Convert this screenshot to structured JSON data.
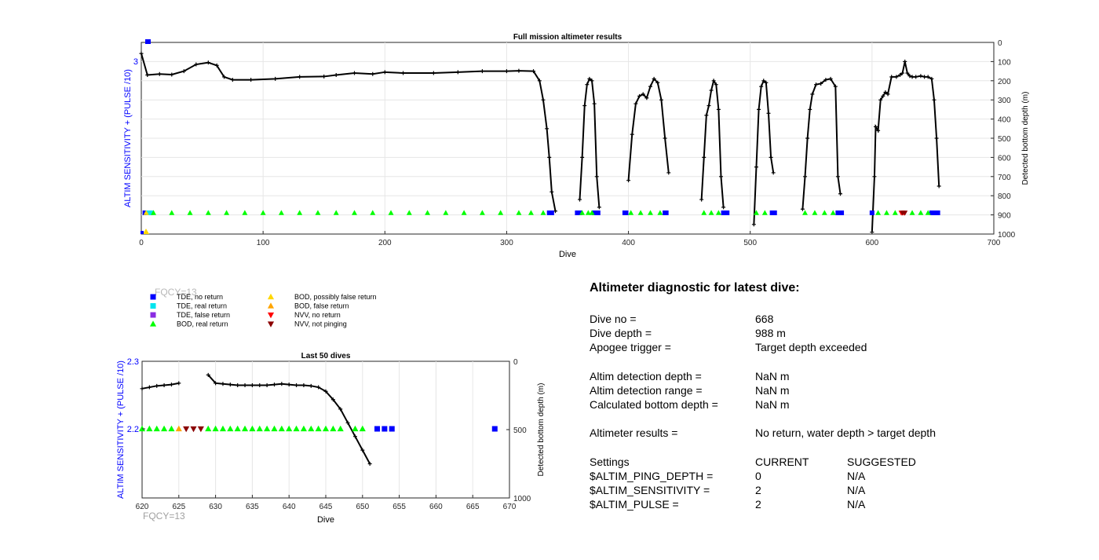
{
  "top_chart": {
    "title": "Full mission altimeter results",
    "xlabel": "Dive",
    "ylabel_left": "ALTIM SENSITIVITY + (PULSE /10)",
    "ylabel_right": "Detected bottom depth (m)",
    "xticks": [
      "0",
      "100",
      "200",
      "300",
      "400",
      "500",
      "600",
      "700"
    ],
    "yticks_right": [
      "0",
      "100",
      "200",
      "300",
      "400",
      "500",
      "600",
      "700",
      "800",
      "900",
      "1000"
    ],
    "ytick_left": "3"
  },
  "bottom_chart": {
    "title": "Last 50 dives",
    "xlabel": "Dive",
    "ylabel_left": "ALTIM SENSITIVITY + (PULSE /10)",
    "ylabel_right": "Detected bottom depth (m)",
    "xticks": [
      "620",
      "625",
      "630",
      "635",
      "640",
      "645",
      "650",
      "655",
      "660",
      "665",
      "670"
    ],
    "yticks_left": [
      "2.3",
      "2.2"
    ],
    "yticks_right": [
      "0",
      "500",
      "1000"
    ],
    "fqcy_label": "FQCY=13"
  },
  "fqcy_ghost": "FQCY=13",
  "legend": [
    {
      "label": "TDE, no return",
      "marker": "square",
      "color": "#0000ff"
    },
    {
      "label": "TDE, real return",
      "marker": "square",
      "color": "#00e5ee"
    },
    {
      "label": "TDE, false return",
      "marker": "square",
      "color": "#8a2be2"
    },
    {
      "label": "BOD, real return",
      "marker": "triangle-up",
      "color": "#00ff00"
    },
    {
      "label": "BOD, possibly false return",
      "marker": "triangle-up",
      "color": "#ffd700"
    },
    {
      "label": "BOD, false return",
      "marker": "triangle-up",
      "color": "#ffa500"
    },
    {
      "label": "NVV, no return",
      "marker": "triangle-down",
      "color": "#ff0000"
    },
    {
      "label": "NVV, not pinging",
      "marker": "triangle-down",
      "color": "#8b0000"
    }
  ],
  "diagnostic": {
    "title": "Altimeter diagnostic for latest dive:",
    "dive_no": {
      "label": "Dive no =",
      "value": "668"
    },
    "dive_depth": {
      "label": "Dive depth =",
      "value": "988 m"
    },
    "apogee": {
      "label": "Apogee trigger =",
      "value": "Target depth exceeded"
    },
    "det_depth": {
      "label": "Altim detection depth =",
      "value": "NaN m"
    },
    "det_range": {
      "label": "Altim detection range =",
      "value": "NaN m"
    },
    "calc_depth": {
      "label": "Calculated bottom depth =",
      "value": "NaN m"
    },
    "results": {
      "label": "Altimeter results =",
      "value": "No return, water depth > target depth"
    },
    "settings_header": {
      "label": "Settings",
      "current": "CURRENT",
      "suggested": "SUGGESTED"
    },
    "ping_depth": {
      "label": "$ALTIM_PING_DEPTH =",
      "current": "0",
      "suggested": "N/A"
    },
    "sensitivity": {
      "label": "$ALTIM_SENSITIVITY =",
      "current": "2",
      "suggested": "N/A"
    },
    "pulse": {
      "label": "$ALTIM_PULSE =",
      "current": "2",
      "suggested": "N/A"
    }
  },
  "chart_data": [
    {
      "type": "line",
      "title": "Full mission altimeter results",
      "xlabel": "Dive",
      "ylabel": "Detected bottom depth (m)",
      "xlim": [
        0,
        700
      ],
      "ylim": [
        1000,
        0
      ],
      "series": [
        {
          "values": [
            [
              0,
              58
            ],
            [
              5,
              170
            ],
            [
              15,
              165
            ],
            [
              25,
              168
            ],
            [
              35,
              150
            ],
            [
              45,
              115
            ],
            [
              55,
              105
            ],
            [
              62,
              120
            ],
            [
              68,
              180
            ],
            [
              75,
              195
            ],
            [
              90,
              195
            ],
            [
              110,
              190
            ],
            [
              130,
              180
            ],
            [
              150,
              178
            ],
            [
              160,
              170
            ],
            [
              175,
              160
            ],
            [
              190,
              165
            ],
            [
              200,
              155
            ],
            [
              215,
              160
            ],
            [
              240,
              160
            ],
            [
              260,
              155
            ],
            [
              280,
              150
            ],
            [
              300,
              150
            ],
            [
              310,
              148
            ],
            [
              322,
              150
            ],
            [
              327,
              200
            ],
            [
              330,
              300
            ],
            [
              333,
              450
            ],
            [
              335,
              600
            ],
            [
              337,
              780
            ],
            [
              340,
              880
            ]
          ]
        },
        {
          "values": [
            [
              360,
              820
            ],
            [
              362,
              600
            ],
            [
              364,
              330
            ],
            [
              366,
              220
            ],
            [
              368,
              190
            ],
            [
              370,
              200
            ],
            [
              372,
              320
            ],
            [
              374,
              700
            ],
            [
              376,
              860
            ]
          ]
        },
        {
          "values": [
            [
              400,
              720
            ],
            [
              403,
              480
            ],
            [
              406,
              320
            ],
            [
              409,
              280
            ],
            [
              412,
              270
            ],
            [
              415,
              290
            ],
            [
              418,
              230
            ],
            [
              421,
              190
            ],
            [
              424,
              210
            ],
            [
              427,
              300
            ],
            [
              430,
              500
            ],
            [
              433,
              680
            ]
          ]
        },
        {
          "values": [
            [
              460,
              820
            ],
            [
              462,
              600
            ],
            [
              464,
              380
            ],
            [
              466,
              330
            ],
            [
              468,
              250
            ],
            [
              470,
              200
            ],
            [
              472,
              220
            ],
            [
              474,
              350
            ],
            [
              476,
              700
            ],
            [
              478,
              860
            ]
          ]
        },
        {
          "values": [
            [
              503,
              950
            ],
            [
              505,
              650
            ],
            [
              507,
              350
            ],
            [
              509,
              230
            ],
            [
              511,
              200
            ],
            [
              513,
              210
            ],
            [
              515,
              370
            ],
            [
              517,
              600
            ],
            [
              519,
              680
            ]
          ]
        },
        {
          "values": [
            [
              543,
              870
            ],
            [
              545,
              700
            ],
            [
              547,
              500
            ],
            [
              549,
              350
            ],
            [
              551,
              270
            ],
            [
              554,
              220
            ],
            [
              558,
              215
            ],
            [
              562,
              195
            ],
            [
              566,
              190
            ],
            [
              570,
              230
            ],
            [
              572,
              700
            ],
            [
              574,
              790
            ]
          ]
        },
        {
          "values": [
            [
              600,
              990
            ],
            [
              602,
              700
            ],
            [
              603,
              440
            ],
            [
              605,
              460
            ],
            [
              607,
              300
            ],
            [
              609,
              280
            ],
            [
              611,
              260
            ],
            [
              613,
              270
            ],
            [
              616,
              180
            ],
            [
              620,
              180
            ],
            [
              623,
              170
            ],
            [
              625,
              160
            ],
            [
              627,
              100
            ],
            [
              629,
              160
            ],
            [
              631,
              175
            ],
            [
              633,
              180
            ],
            [
              636,
              180
            ],
            [
              640,
              175
            ],
            [
              643,
              180
            ],
            [
              646,
              180
            ],
            [
              649,
              190
            ],
            [
              651,
              300
            ],
            [
              653,
              500
            ],
            [
              655,
              750
            ]
          ]
        }
      ],
      "markers": [
        {
          "name": "TDE, no return",
          "marker": "square",
          "x": [
            3,
            4,
            335,
            336,
            337,
            358,
            360,
            372,
            373,
            374,
            375,
            397,
            398,
            430,
            431,
            478,
            479,
            480,
            481,
            518,
            519,
            520,
            572,
            573,
            574,
            575,
            600,
            649,
            650,
            651,
            652,
            653,
            654
          ]
        },
        {
          "name": "TDE, real return",
          "marker": "square",
          "x": [
            6,
            7,
            8
          ]
        },
        {
          "name": "BOD, real return",
          "marker": "triangle-up",
          "x": [
            10,
            25,
            40,
            55,
            70,
            85,
            100,
            115,
            130,
            145,
            160,
            175,
            190,
            205,
            220,
            235,
            250,
            265,
            280,
            295,
            310,
            320,
            330,
            362,
            367,
            370,
            402,
            410,
            418,
            426,
            462,
            468,
            474,
            505,
            512,
            545,
            553,
            561,
            568,
            605,
            612,
            619,
            633,
            640,
            646
          ]
        },
        {
          "name": "BOD, possibly false return",
          "marker": "triangle-up",
          "x": [
            4
          ]
        },
        {
          "name": "NVV, no return",
          "marker": "triangle-down",
          "x": [
            624,
            626
          ]
        },
        {
          "name": "NVV, not pinging",
          "marker": "triangle-down",
          "x": [
            625,
            627
          ]
        }
      ]
    },
    {
      "type": "line",
      "title": "Last 50 dives",
      "xlabel": "Dive",
      "ylabel": "Detected bottom depth (m)",
      "xlim": [
        620,
        670
      ],
      "ylim": [
        1000,
        0
      ],
      "series": [
        {
          "values": [
            [
              620,
              200
            ],
            [
              621,
              190
            ],
            [
              622,
              180
            ],
            [
              623,
              175
            ],
            [
              624,
              170
            ],
            [
              625,
              160
            ]
          ]
        },
        {
          "values": [
            [
              629,
              100
            ],
            [
              630,
              160
            ],
            [
              631,
              165
            ],
            [
              632,
              170
            ],
            [
              633,
              175
            ],
            [
              634,
              175
            ],
            [
              635,
              175
            ],
            [
              636,
              175
            ],
            [
              637,
              175
            ],
            [
              638,
              170
            ],
            [
              639,
              165
            ],
            [
              640,
              170
            ],
            [
              641,
              175
            ],
            [
              642,
              175
            ],
            [
              643,
              180
            ],
            [
              644,
              190
            ],
            [
              645,
              220
            ],
            [
              646,
              280
            ],
            [
              647,
              350
            ],
            [
              648,
              450
            ],
            [
              649,
              550
            ],
            [
              650,
              650
            ],
            [
              651,
              750
            ]
          ]
        }
      ],
      "markers": [
        {
          "name": "BOD, real return",
          "marker": "triangle-up",
          "x": [
            620,
            621,
            622,
            623,
            624,
            629,
            630,
            631,
            632,
            633,
            634,
            635,
            636,
            637,
            638,
            639,
            640,
            641,
            642,
            643,
            644,
            645,
            646,
            647,
            649,
            650
          ]
        },
        {
          "name": "BOD, false return",
          "marker": "triangle-up",
          "x": [
            625
          ]
        },
        {
          "name": "NVV, not pinging",
          "marker": "triangle-down",
          "x": [
            626,
            627,
            628
          ]
        },
        {
          "name": "TDE, no return",
          "marker": "square",
          "x": [
            652,
            653,
            654,
            668
          ]
        }
      ]
    }
  ]
}
